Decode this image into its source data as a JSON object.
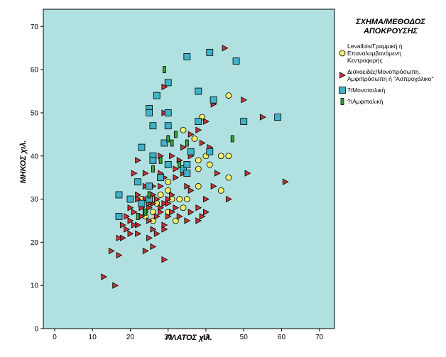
{
  "chart_data": {
    "type": "scatter",
    "xlabel": "ΠΛΑΤΟΣ χιλ.",
    "ylabel": "ΜΗΚΟΣ χιλ.",
    "xlim": [
      -3,
      74
    ],
    "ylim": [
      0,
      74
    ],
    "xticks": [
      "0",
      "10",
      "20",
      "30",
      "40",
      "50",
      "60",
      "70"
    ],
    "yticks": [
      "0",
      "10",
      "20",
      "30",
      "40",
      "50",
      "60",
      "70"
    ],
    "grid": false,
    "background": "#b0e0e0",
    "legend": {
      "title_lines": [
        "ΣΧΗΜΑ/ΜΕΘΟΔΟΣ",
        "ΑΠΟΚΡΟΥΣΗΣ"
      ],
      "placement": "right"
    },
    "series": [
      {
        "name_lines": [
          "Levallois/Γραμμική ή",
          "Επαναλαμβανόμενη",
          "Κεντροφερής"
        ],
        "marker": "circle",
        "color": "#f5ef6a",
        "points": [
          [
            39,
            49
          ],
          [
            46,
            54
          ],
          [
            34,
            46
          ],
          [
            37,
            44
          ],
          [
            38,
            39
          ],
          [
            40,
            40
          ],
          [
            44,
            40
          ],
          [
            46,
            40
          ],
          [
            41,
            38
          ],
          [
            38,
            37
          ],
          [
            46,
            35
          ],
          [
            44,
            32
          ],
          [
            38,
            33
          ],
          [
            34,
            28
          ],
          [
            31,
            30
          ],
          [
            33,
            30
          ],
          [
            30,
            34
          ],
          [
            30,
            32
          ],
          [
            28,
            31
          ],
          [
            27,
            29
          ],
          [
            26,
            27
          ],
          [
            24,
            26
          ],
          [
            23,
            30
          ],
          [
            26,
            25
          ],
          [
            30,
            27
          ],
          [
            32,
            25
          ],
          [
            35,
            30
          ]
        ]
      },
      {
        "name_lines": [
          "Δισκοειδές/Μονοπρόσωπη,",
          "Αμφιπρόσωπη ή \"Ασπροχάλικο\""
        ],
        "marker": "triangle-right",
        "color": "#cc3333",
        "points": [
          [
            45,
            65
          ],
          [
            50,
            53
          ],
          [
            55,
            49
          ],
          [
            42,
            52
          ],
          [
            40,
            48
          ],
          [
            38,
            46
          ],
          [
            36,
            45
          ],
          [
            39,
            43
          ],
          [
            41,
            42
          ],
          [
            34,
            42
          ],
          [
            31,
            40
          ],
          [
            36,
            40
          ],
          [
            32,
            37
          ],
          [
            34,
            36
          ],
          [
            28,
            36
          ],
          [
            24,
            36
          ],
          [
            21,
            36
          ],
          [
            22,
            39
          ],
          [
            26,
            33
          ],
          [
            24,
            33
          ],
          [
            22,
            31
          ],
          [
            20,
            28
          ],
          [
            19,
            26
          ],
          [
            18,
            24
          ],
          [
            19,
            23
          ],
          [
            20,
            22
          ],
          [
            18,
            21
          ],
          [
            17,
            21
          ],
          [
            15,
            18
          ],
          [
            17,
            17
          ],
          [
            16,
            10
          ],
          [
            13,
            12
          ],
          [
            24,
            18
          ],
          [
            26,
            19
          ],
          [
            29,
            16
          ],
          [
            22,
            24
          ],
          [
            23,
            26
          ],
          [
            24,
            27
          ],
          [
            25,
            28
          ],
          [
            26,
            29
          ],
          [
            27,
            30
          ],
          [
            28,
            28
          ],
          [
            29,
            29
          ],
          [
            30,
            30
          ],
          [
            30,
            26
          ],
          [
            31,
            27
          ],
          [
            32,
            28
          ],
          [
            33,
            26
          ],
          [
            35,
            25
          ],
          [
            36,
            27
          ],
          [
            38,
            25
          ],
          [
            40,
            27
          ],
          [
            39,
            26
          ],
          [
            29,
            23
          ],
          [
            29,
            24
          ],
          [
            27,
            22
          ],
          [
            26,
            23
          ],
          [
            21,
            24
          ],
          [
            20,
            25
          ],
          [
            22,
            22
          ],
          [
            25,
            21
          ],
          [
            28,
            33
          ],
          [
            29,
            35
          ],
          [
            32,
            35
          ],
          [
            30,
            38
          ],
          [
            33,
            39
          ],
          [
            35,
            33
          ],
          [
            36,
            32
          ],
          [
            38,
            28
          ],
          [
            40,
            30
          ],
          [
            42,
            33
          ],
          [
            43,
            36
          ],
          [
            46,
            30
          ],
          [
            51,
            36
          ],
          [
            61,
            34
          ],
          [
            28,
            40
          ],
          [
            29,
            50
          ],
          [
            29,
            56
          ],
          [
            30,
            57
          ],
          [
            25,
            29
          ],
          [
            23,
            28
          ],
          [
            21,
            27
          ],
          [
            25,
            25
          ],
          [
            28,
            27
          ],
          [
            27,
            26
          ],
          [
            30,
            29
          ],
          [
            31,
            31
          ],
          [
            24,
            30
          ],
          [
            22,
            30
          ],
          [
            26,
            31
          ]
        ]
      },
      {
        "name_lines": [
          "?/Μονοπολική"
        ],
        "marker": "square",
        "color": "#3fb3c8",
        "points": [
          [
            35,
            63
          ],
          [
            41,
            64
          ],
          [
            48,
            62
          ],
          [
            30,
            57
          ],
          [
            38,
            55
          ],
          [
            42,
            53
          ],
          [
            27,
            54
          ],
          [
            25,
            51
          ],
          [
            25,
            50
          ],
          [
            30,
            50
          ],
          [
            50,
            48
          ],
          [
            59,
            49
          ],
          [
            26,
            47
          ],
          [
            30,
            47
          ],
          [
            38,
            48
          ],
          [
            29,
            43
          ],
          [
            36,
            41
          ],
          [
            41,
            41
          ],
          [
            26,
            40
          ],
          [
            26,
            39
          ],
          [
            23,
            42
          ],
          [
            30,
            38
          ],
          [
            34,
            37
          ],
          [
            35,
            36
          ],
          [
            22,
            34
          ],
          [
            25,
            33
          ],
          [
            28,
            35
          ],
          [
            17,
            31
          ],
          [
            20,
            30
          ],
          [
            23,
            29
          ],
          [
            25,
            30
          ],
          [
            17,
            26
          ],
          [
            35,
            38
          ]
        ]
      },
      {
        "name_lines": [
          "?/Αμφιπολική"
        ],
        "marker": "bar",
        "color": "#33a833",
        "points": [
          [
            29,
            60
          ],
          [
            30,
            44
          ],
          [
            32,
            45
          ],
          [
            35,
            43
          ],
          [
            47,
            44
          ],
          [
            28,
            39
          ],
          [
            33,
            38
          ],
          [
            26,
            37
          ],
          [
            25,
            31
          ],
          [
            24,
            27
          ],
          [
            22,
            26
          ],
          [
            31,
            43
          ]
        ]
      }
    ]
  }
}
